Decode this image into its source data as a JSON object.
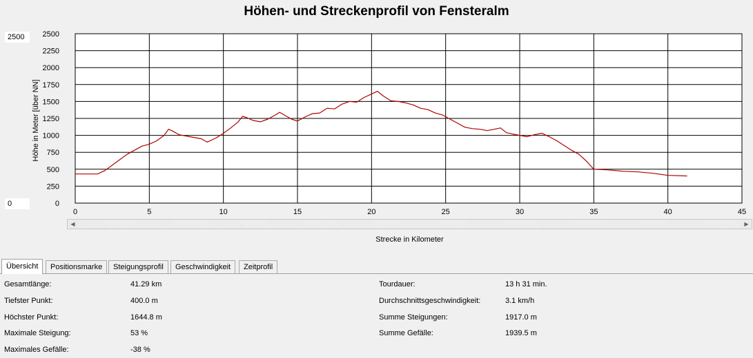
{
  "window": {
    "title": "Höhen- und Streckenprofil von Fensteralm",
    "range_max_field": "2500",
    "range_min_field": "0",
    "scroll_left_icon": "triangle-left",
    "scroll_right_icon": "triangle-right"
  },
  "chart_data": {
    "type": "line",
    "xlabel": "Strecke in Kilometer",
    "ylabel": "Höhe in Meter [über NN]",
    "xlim": [
      0,
      45
    ],
    "ylim": [
      0,
      2500
    ],
    "x_ticks": [
      0,
      5,
      10,
      15,
      20,
      25,
      30,
      35,
      40,
      45
    ],
    "y_ticks": [
      0,
      250,
      500,
      750,
      1000,
      1250,
      1500,
      1750,
      2000,
      2250,
      2500
    ],
    "grid": true,
    "line_color": "#b00000",
    "series": [
      {
        "x": [
          0,
          1.5,
          2,
          2.5,
          3,
          3.5,
          4,
          4.5,
          5,
          5.5,
          6,
          6.3,
          6.6,
          7,
          7.5,
          8,
          8.5,
          8.9,
          9.5,
          10,
          10.5,
          11,
          11.3,
          11.6,
          12,
          12.5,
          13,
          13.5,
          13.8,
          14.2,
          14.6,
          15,
          15.5,
          16,
          16.5,
          17,
          17.5,
          18,
          18.5,
          19,
          19.5,
          20,
          20.4,
          20.8,
          21.3,
          21.8,
          22.3,
          22.8,
          23.3,
          23.8,
          24.3,
          24.8,
          25.3,
          25.8,
          26.3,
          26.8,
          27.3,
          27.8,
          28.3,
          28.7,
          29.1,
          29.5,
          30,
          30.5,
          31,
          31.5,
          32,
          32.5,
          33,
          33.5,
          34,
          34.5,
          35,
          36,
          37,
          38,
          39,
          40,
          41.3
        ],
        "y": [
          430,
          430,
          480,
          560,
          640,
          720,
          780,
          840,
          870,
          920,
          1000,
          1090,
          1060,
          1010,
          990,
          970,
          950,
          900,
          960,
          1030,
          1110,
          1200,
          1280,
          1260,
          1220,
          1200,
          1240,
          1300,
          1340,
          1290,
          1240,
          1210,
          1270,
          1320,
          1330,
          1400,
          1390,
          1460,
          1500,
          1490,
          1560,
          1610,
          1650,
          1580,
          1510,
          1500,
          1480,
          1450,
          1400,
          1380,
          1330,
          1300,
          1240,
          1180,
          1120,
          1100,
          1090,
          1070,
          1090,
          1110,
          1040,
          1020,
          1000,
          980,
          1010,
          1030,
          980,
          920,
          850,
          780,
          720,
          620,
          500,
          490,
          470,
          460,
          440,
          410,
          400
        ]
      }
    ]
  },
  "tabs": [
    {
      "label": "Übersicht",
      "active": true
    },
    {
      "label": "Positionsmarke",
      "active": false
    },
    {
      "label": "Steigungsprofil",
      "active": false
    },
    {
      "label": "Geschwindigkeit",
      "active": false
    },
    {
      "label": "Zeitprofil",
      "active": false
    }
  ],
  "overview": {
    "left": [
      {
        "label": "Gesamtlänge:",
        "value": "41.29 km"
      },
      {
        "label": "Tiefster Punkt:",
        "value": "400.0 m"
      },
      {
        "label": "Höchster Punkt:",
        "value": "1644.8 m"
      },
      {
        "label": "Maximale Steigung:",
        "value": "53 %"
      },
      {
        "label": "Maximales Gefälle:",
        "value": "-38 %"
      }
    ],
    "right": [
      {
        "label": "Tourdauer:",
        "value": "13 h 31 min."
      },
      {
        "label": "Durchschnittsgeschwindigkeit:",
        "value": "3.1 km/h"
      },
      {
        "label": "Summe Steigungen:",
        "value": "1917.0 m"
      },
      {
        "label": "Summe Gefälle:",
        "value": "1939.5 m"
      }
    ]
  }
}
